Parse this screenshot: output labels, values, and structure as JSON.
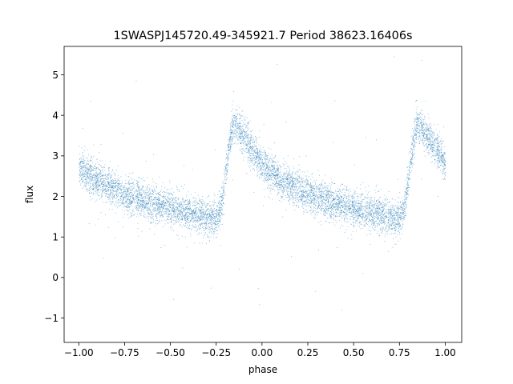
{
  "chart_data": {
    "type": "scatter",
    "title": "1SWASPJ145720.49-345921.7 Period 38623.16406s",
    "xlabel": "phase",
    "ylabel": "flux",
    "xlim": [
      -1.08,
      1.09
    ],
    "ylim": [
      -1.6,
      5.7
    ],
    "xticks": [
      -1.0,
      -0.75,
      -0.5,
      -0.25,
      0.0,
      0.25,
      0.5,
      0.75,
      1.0
    ],
    "xtick_labels": [
      "−1.00",
      "−0.75",
      "−0.50",
      "−0.25",
      "0.00",
      "0.25",
      "0.50",
      "0.75",
      "1.00"
    ],
    "yticks": [
      -1,
      0,
      1,
      2,
      3,
      4,
      5
    ],
    "ytick_labels": [
      "−1",
      "0",
      "1",
      "2",
      "3",
      "4",
      "5"
    ],
    "grid": false,
    "legend": "none",
    "marker_color": "#1f77b4",
    "phase_range": [
      -1.0,
      1.0
    ],
    "light_curve_shape": "sawtooth (RR Lyrae-like): slow decline after maximum, steep rise before maximum",
    "light_curve_profile": {
      "phase": [
        -1.0,
        -0.9,
        -0.75,
        -0.5,
        -0.3,
        -0.25,
        -0.22,
        -0.19,
        -0.16,
        -0.14,
        -0.1,
        0.0,
        0.1,
        0.25,
        0.5,
        0.7,
        0.75,
        0.78,
        0.81,
        0.84,
        0.86,
        0.9,
        1.0
      ],
      "flux": [
        2.75,
        2.4,
        2.05,
        1.7,
        1.5,
        1.45,
        1.8,
        2.9,
        3.8,
        3.75,
        3.5,
        2.8,
        2.4,
        2.05,
        1.7,
        1.5,
        1.45,
        1.8,
        2.9,
        3.8,
        3.75,
        3.5,
        2.8
      ]
    },
    "typical_scatter": 0.22,
    "outlier_flux_range": [
      -1.3,
      5.5
    ]
  }
}
